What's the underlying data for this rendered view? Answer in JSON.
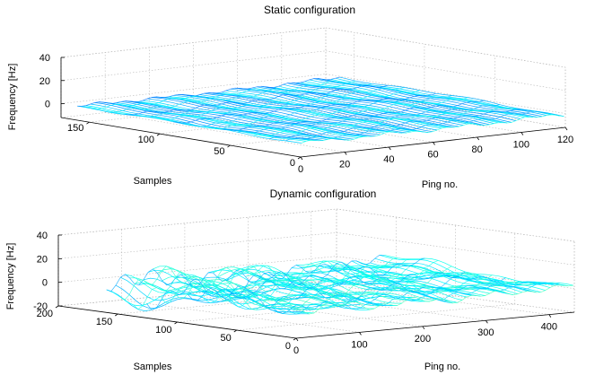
{
  "chart_data": [
    {
      "type": "mesh",
      "title": "Static configuration",
      "xlabel": "Ping no.",
      "ylabel": "Samples",
      "zlabel": "Frequency [Hz]",
      "x_ticks": [
        "0",
        "20",
        "40",
        "60",
        "80",
        "100",
        "120"
      ],
      "y_ticks": [
        "0",
        "50",
        "100",
        "150"
      ],
      "z_ticks": [
        "0",
        "20",
        "40"
      ],
      "xlim": [
        0,
        120
      ],
      "ylim": [
        0,
        170
      ],
      "zlim": [
        -12,
        40
      ],
      "surface": {
        "x_range": [
          1,
          120
        ],
        "y_range": [
          1,
          160
        ],
        "z_base": -1,
        "z_amplitude": 2.5,
        "colormap": "jet",
        "color_range": [
          -20,
          40
        ]
      }
    },
    {
      "type": "mesh",
      "title": "Dynamic configuration",
      "xlabel": "Ping no.",
      "ylabel": "Samples",
      "zlabel": "Frequency [Hz]",
      "x_ticks": [
        "0",
        "100",
        "200",
        "300",
        "400"
      ],
      "y_ticks": [
        "0",
        "50",
        "100",
        "150",
        "200"
      ],
      "z_ticks": [
        "-20",
        "0",
        "20",
        "40"
      ],
      "xlim": [
        0,
        440
      ],
      "ylim": [
        0,
        200
      ],
      "zlim": [
        -20,
        40
      ],
      "surface": {
        "x_range": [
          1,
          440
        ],
        "y_range": [
          1,
          160
        ],
        "z_base": 2,
        "z_amplitude": 14,
        "colormap": "jet",
        "color_range": [
          -20,
          40
        ]
      }
    }
  ]
}
